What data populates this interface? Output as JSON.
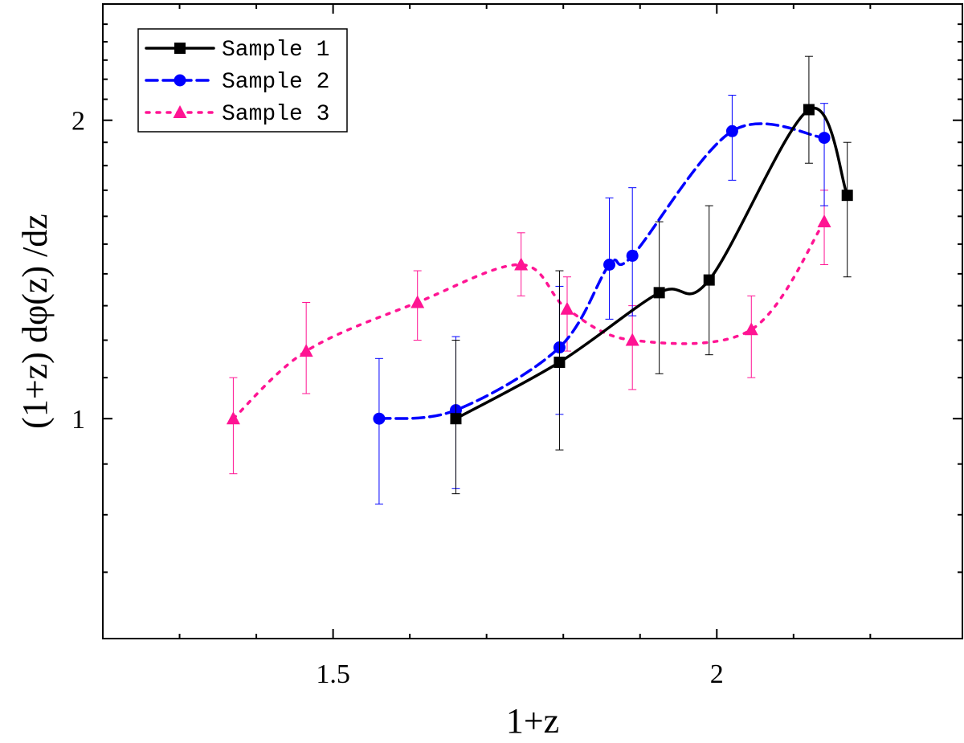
{
  "chart_data": {
    "type": "line",
    "title": "",
    "xlabel": "1+z",
    "ylabel": "(1+z) dφ(z) /dz",
    "xlim": [
      1.2,
      2.32
    ],
    "ylim": [
      0.6,
      2.62
    ],
    "y_scale": "log",
    "x_ticks": [
      {
        "value": 1.5,
        "label": "1.5"
      },
      {
        "value": 2.0,
        "label": "2"
      }
    ],
    "y_ticks": [
      {
        "value": 1.0,
        "label": "1"
      },
      {
        "value": 2.0,
        "label": "2"
      }
    ],
    "legend_position": "top-left",
    "series": [
      {
        "name": "Sample 1",
        "color": "#000000",
        "line_style": "solid",
        "marker": "square",
        "points": [
          {
            "x": 1.66,
            "y": 1.0,
            "err_low": 0.84,
            "err_high": 1.2
          },
          {
            "x": 1.795,
            "y": 1.14,
            "err_low": 0.93,
            "err_high": 1.41
          },
          {
            "x": 1.925,
            "y": 1.34,
            "err_low": 1.11,
            "err_high": 1.58
          },
          {
            "x": 1.99,
            "y": 1.38,
            "err_low": 1.16,
            "err_high": 1.64
          },
          {
            "x": 2.12,
            "y": 2.05,
            "err_low": 1.81,
            "err_high": 2.32
          },
          {
            "x": 2.17,
            "y": 1.68,
            "err_low": 1.39,
            "err_high": 1.9
          }
        ]
      },
      {
        "name": "Sample 2",
        "color": "#0000ff",
        "line_style": "dashed",
        "marker": "circle",
        "points": [
          {
            "x": 1.56,
            "y": 1.0,
            "err_low": 0.82,
            "err_high": 1.15
          },
          {
            "x": 1.66,
            "y": 1.02,
            "err_low": 0.85,
            "err_high": 1.21
          },
          {
            "x": 1.795,
            "y": 1.18,
            "err_low": 1.01,
            "err_high": 1.36
          },
          {
            "x": 1.86,
            "y": 1.43,
            "err_low": 1.26,
            "err_high": 1.67
          },
          {
            "x": 1.89,
            "y": 1.46,
            "err_low": 1.27,
            "err_high": 1.71
          },
          {
            "x": 2.02,
            "y": 1.95,
            "err_low": 1.74,
            "err_high": 2.12
          },
          {
            "x": 2.14,
            "y": 1.92,
            "err_low": 1.64,
            "err_high": 2.08
          }
        ]
      },
      {
        "name": "Sample 3",
        "color": "#ff1493",
        "line_style": "dotted",
        "marker": "triangle",
        "points": [
          {
            "x": 1.37,
            "y": 1.0,
            "err_low": 0.88,
            "err_high": 1.1
          },
          {
            "x": 1.465,
            "y": 1.17,
            "err_low": 1.06,
            "err_high": 1.31
          },
          {
            "x": 1.61,
            "y": 1.31,
            "err_low": 1.2,
            "err_high": 1.41
          },
          {
            "x": 1.745,
            "y": 1.43,
            "err_low": 1.33,
            "err_high": 1.54
          },
          {
            "x": 1.805,
            "y": 1.29,
            "err_low": 1.17,
            "err_high": 1.39
          },
          {
            "x": 1.89,
            "y": 1.2,
            "err_low": 1.07,
            "err_high": 1.3
          },
          {
            "x": 2.045,
            "y": 1.23,
            "err_low": 1.1,
            "err_high": 1.33
          },
          {
            "x": 2.14,
            "y": 1.58,
            "err_low": 1.43,
            "err_high": 1.7
          }
        ]
      }
    ]
  }
}
